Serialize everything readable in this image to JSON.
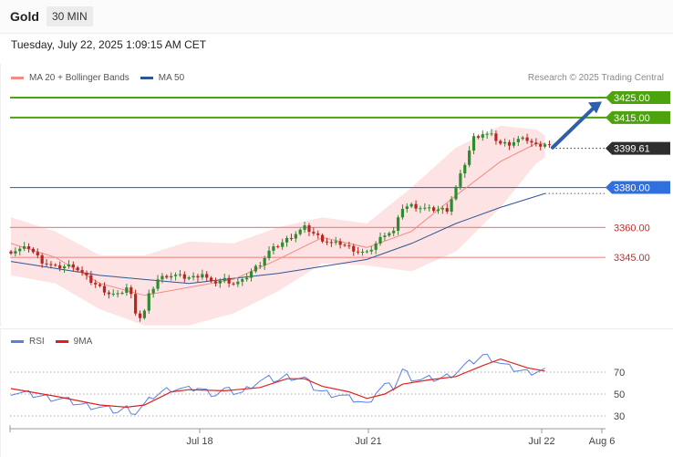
{
  "header": {
    "symbol": "Gold",
    "timeframe": "30 MIN",
    "timestamp": "Tuesday, July 22, 2025 1:09:15 AM CET"
  },
  "legend": {
    "main": [
      {
        "label": "MA 20 + Bollinger Bands",
        "color": "#f28b86"
      },
      {
        "label": "MA 50",
        "color": "#2f5597"
      }
    ],
    "rsi": [
      {
        "label": "RSI",
        "color": "#5b7fe0"
      },
      {
        "label": "9MA",
        "color": "#e02020"
      }
    ]
  },
  "credit": "Research © 2025 Trading Central",
  "colors": {
    "up": "#2e8b2e",
    "down": "#b8261e",
    "bollinger_fill": "#fde3e3",
    "resistance": "#4ca30d",
    "pivot": "#2f6fe0",
    "support": "#f08a8a",
    "price_tag": "#2e2e2e",
    "arrow": "#2e5fa8",
    "ma50": "#2f5597",
    "ma20": "#f28b86"
  },
  "levels": [
    {
      "label": "3425.00",
      "kind": "resistance"
    },
    {
      "label": "3415.00",
      "kind": "resistance"
    },
    {
      "label": "3380.00",
      "kind": "pivot"
    },
    {
      "label": "3360.00",
      "kind": "support"
    },
    {
      "label": "3345.00",
      "kind": "support"
    }
  ],
  "current_price": {
    "label": "3399.61"
  },
  "chart_data": [
    {
      "type": "candlestick",
      "title": "Gold 30 MIN",
      "x_ticks": [
        "Jul 18",
        "Jul 21",
        "Jul 22",
        "Aug 6"
      ],
      "y_levels": [
        3425.0,
        3415.0,
        3399.61,
        3380.0,
        3360.0,
        3345.0
      ],
      "close_path": [
        [
          0,
          3348
        ],
        [
          4,
          3350
        ],
        [
          7,
          3343
        ],
        [
          10,
          3340
        ],
        [
          14,
          3341
        ],
        [
          16,
          3337
        ],
        [
          18,
          3333
        ],
        [
          20,
          3330
        ],
        [
          22,
          3327
        ],
        [
          24,
          3326
        ],
        [
          26,
          3330
        ],
        [
          27,
          3326
        ],
        [
          28,
          3318
        ],
        [
          29,
          3315
        ],
        [
          30,
          3318
        ],
        [
          31,
          3326
        ],
        [
          33,
          3334
        ],
        [
          35,
          3336
        ],
        [
          37,
          3336
        ],
        [
          39,
          3335
        ],
        [
          41,
          3335
        ],
        [
          43,
          3337
        ],
        [
          45,
          3332
        ],
        [
          48,
          3334
        ],
        [
          50,
          3332
        ],
        [
          52,
          3333
        ],
        [
          54,
          3338
        ],
        [
          56,
          3342
        ],
        [
          58,
          3348
        ],
        [
          60,
          3351
        ],
        [
          62,
          3354
        ],
        [
          64,
          3357
        ],
        [
          66,
          3360
        ],
        [
          68,
          3357
        ],
        [
          70,
          3354
        ],
        [
          72,
          3352
        ],
        [
          74,
          3352
        ],
        [
          76,
          3350
        ],
        [
          78,
          3348
        ],
        [
          80,
          3347
        ],
        [
          82,
          3352
        ],
        [
          84,
          3357
        ],
        [
          86,
          3358
        ],
        [
          88,
          3370
        ],
        [
          90,
          3371
        ],
        [
          92,
          3370
        ],
        [
          94,
          3369
        ],
        [
          96,
          3369
        ],
        [
          98,
          3369
        ],
        [
          100,
          3380
        ],
        [
          102,
          3392
        ],
        [
          104,
          3405
        ],
        [
          106,
          3407
        ],
        [
          108,
          3406
        ],
        [
          110,
          3402
        ],
        [
          112,
          3402
        ],
        [
          114,
          3404
        ],
        [
          116,
          3404
        ],
        [
          118,
          3401
        ],
        [
          120,
          3402
        ],
        [
          122,
          3400
        ]
      ],
      "ma20": [
        [
          0,
          3352
        ],
        [
          10,
          3345
        ],
        [
          20,
          3332
        ],
        [
          30,
          3326
        ],
        [
          40,
          3330
        ],
        [
          50,
          3334
        ],
        [
          60,
          3344
        ],
        [
          70,
          3355
        ],
        [
          80,
          3350
        ],
        [
          90,
          3358
        ],
        [
          100,
          3376
        ],
        [
          110,
          3393
        ],
        [
          118,
          3402
        ],
        [
          120,
          3402
        ]
      ],
      "ma50": [
        [
          0,
          3343
        ],
        [
          20,
          3336
        ],
        [
          40,
          3332
        ],
        [
          60,
          3337
        ],
        [
          80,
          3344
        ],
        [
          90,
          3352
        ],
        [
          100,
          3362
        ],
        [
          110,
          3370
        ],
        [
          120,
          3377
        ]
      ],
      "bollinger_upper": [
        [
          0,
          3365
        ],
        [
          10,
          3358
        ],
        [
          20,
          3346
        ],
        [
          30,
          3346
        ],
        [
          40,
          3353
        ],
        [
          50,
          3352
        ],
        [
          60,
          3360
        ],
        [
          70,
          3365
        ],
        [
          80,
          3362
        ],
        [
          90,
          3380
        ],
        [
          100,
          3400
        ],
        [
          110,
          3411
        ],
        [
          118,
          3409
        ],
        [
          120,
          3406
        ]
      ],
      "bollinger_lower": [
        [
          0,
          3336
        ],
        [
          10,
          3332
        ],
        [
          20,
          3319
        ],
        [
          30,
          3311
        ],
        [
          40,
          3311
        ],
        [
          50,
          3317
        ],
        [
          60,
          3328
        ],
        [
          70,
          3342
        ],
        [
          80,
          3341
        ],
        [
          90,
          3338
        ],
        [
          100,
          3348
        ],
        [
          110,
          3370
        ],
        [
          118,
          3392
        ],
        [
          120,
          3395
        ]
      ]
    },
    {
      "type": "line",
      "title": "RSI",
      "y_ticks": [
        70,
        50,
        30
      ],
      "series": [
        {
          "name": "RSI",
          "values": [
            [
              0,
              52
            ],
            [
              4,
              50
            ],
            [
              8,
              47
            ],
            [
              12,
              45
            ],
            [
              16,
              40
            ],
            [
              20,
              38
            ],
            [
              22,
              36
            ],
            [
              24,
              34
            ],
            [
              26,
              37
            ],
            [
              28,
              33
            ],
            [
              30,
              40
            ],
            [
              32,
              48
            ],
            [
              34,
              52
            ],
            [
              36,
              55
            ],
            [
              38,
              55
            ],
            [
              40,
              54
            ],
            [
              42,
              56
            ],
            [
              44,
              52
            ],
            [
              46,
              50
            ],
            [
              48,
              54
            ],
            [
              50,
              52
            ],
            [
              52,
              51
            ],
            [
              54,
              58
            ],
            [
              56,
              62
            ],
            [
              58,
              64
            ],
            [
              60,
              63
            ],
            [
              62,
              66
            ],
            [
              64,
              65
            ],
            [
              66,
              64
            ],
            [
              68,
              56
            ],
            [
              70,
              52
            ],
            [
              72,
              50
            ],
            [
              74,
              49
            ],
            [
              76,
              46
            ],
            [
              78,
              44
            ],
            [
              80,
              40
            ],
            [
              82,
              52
            ],
            [
              84,
              58
            ],
            [
              86,
              56
            ],
            [
              88,
              72
            ],
            [
              90,
              65
            ],
            [
              92,
              63
            ],
            [
              94,
              64
            ],
            [
              96,
              64
            ],
            [
              98,
              66
            ],
            [
              100,
              70
            ],
            [
              102,
              76
            ],
            [
              104,
              80
            ],
            [
              106,
              85
            ],
            [
              108,
              83
            ],
            [
              110,
              78
            ],
            [
              112,
              74
            ],
            [
              114,
              72
            ],
            [
              116,
              70
            ],
            [
              118,
              71
            ],
            [
              120,
              72
            ]
          ]
        },
        {
          "name": "9MA",
          "values": [
            [
              0,
              55
            ],
            [
              10,
              48
            ],
            [
              20,
              40
            ],
            [
              26,
              38
            ],
            [
              30,
              40
            ],
            [
              36,
              52
            ],
            [
              40,
              54
            ],
            [
              48,
              53
            ],
            [
              56,
              56
            ],
            [
              62,
              64
            ],
            [
              66,
              64
            ],
            [
              70,
              57
            ],
            [
              76,
              52
            ],
            [
              80,
              46
            ],
            [
              84,
              50
            ],
            [
              88,
              59
            ],
            [
              94,
              63
            ],
            [
              100,
              66
            ],
            [
              106,
              76
            ],
            [
              110,
              82
            ],
            [
              116,
              74
            ],
            [
              120,
              71
            ]
          ]
        }
      ]
    }
  ]
}
